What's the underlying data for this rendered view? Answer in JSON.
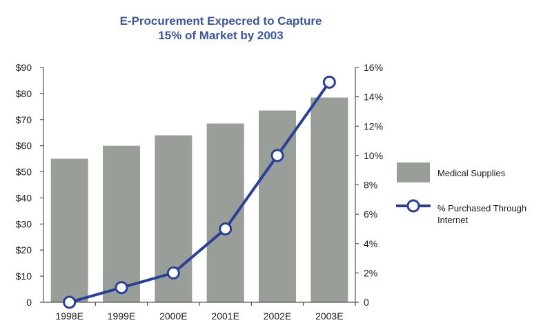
{
  "chart_data": {
    "type": "bar+line",
    "title_line1": "E-Procurement Expecred to Capture",
    "title_line2": "15% of Market by 2003",
    "categories": [
      "1998E",
      "1999E",
      "2000E",
      "2001E",
      "2002E",
      "2003E"
    ],
    "series": [
      {
        "name": "Medical Supplies",
        "type": "bar",
        "axis": "left",
        "values": [
          55,
          60,
          64,
          68.5,
          73.5,
          78.5
        ]
      },
      {
        "name": "% Purchased Through Internet",
        "type": "line",
        "axis": "right",
        "values": [
          0,
          1,
          2,
          5,
          10,
          15
        ]
      }
    ],
    "left_axis": {
      "ylim": [
        0,
        90
      ],
      "ticks": [
        0,
        10,
        20,
        30,
        40,
        50,
        60,
        70,
        80,
        90
      ],
      "tick_labels": [
        "0",
        "$10",
        "$20",
        "$30",
        "$40",
        "$50",
        "$60",
        "$70",
        "$80",
        "$90"
      ]
    },
    "right_axis": {
      "ylim": [
        0,
        16
      ],
      "ticks": [
        0,
        2,
        4,
        6,
        8,
        10,
        12,
        14,
        16
      ],
      "tick_labels": [
        "0",
        "2%",
        "4%",
        "6%",
        "8%",
        "10%",
        "12%",
        "14%",
        "16%"
      ]
    },
    "legend": [
      "Medical Supplies",
      "% Purchased Through Internet"
    ],
    "colors": {
      "bar": "#9a9e99",
      "line": "#2a3f98",
      "marker_fill": "#ffffff",
      "title": "#3a55a0",
      "axis": "#333333"
    }
  }
}
